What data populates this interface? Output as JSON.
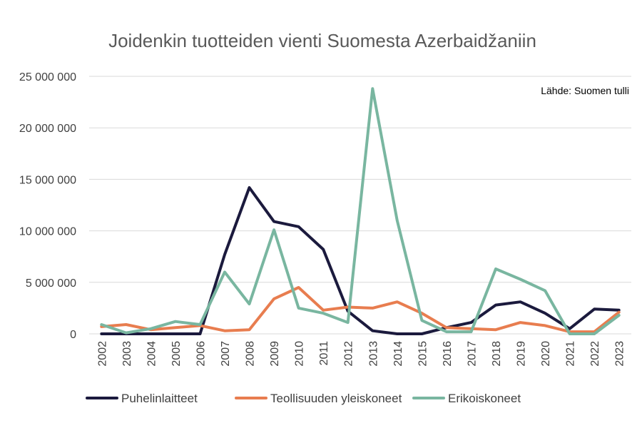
{
  "chart_data": {
    "type": "line",
    "title": "Joidenkin tuotteiden vienti Suomesta Azerbaidžaniin",
    "source_note": "Lähde: Suomen tulli",
    "xlabel": "",
    "ylabel": "",
    "ylim": [
      0,
      25000000
    ],
    "yticks": [
      0,
      5000000,
      10000000,
      15000000,
      20000000,
      25000000
    ],
    "ytick_labels": [
      "0",
      "5 000 000",
      "10 000 000",
      "15 000 000",
      "20 000 000",
      "25 000 000"
    ],
    "grid": true,
    "legend_position": "bottom",
    "categories": [
      "2002",
      "2003",
      "2004",
      "2005",
      "2006",
      "2007",
      "2008",
      "2009",
      "2010",
      "2011",
      "2012",
      "2013",
      "2014",
      "2015",
      "2016",
      "2017",
      "2018",
      "2019",
      "2020",
      "2021",
      "2022",
      "2023"
    ],
    "series": [
      {
        "name": "Puhelinlaitteet",
        "color": "#1b1a3d",
        "values": [
          0,
          0,
          0,
          0,
          0,
          7700000,
          14200000,
          10900000,
          10400000,
          8200000,
          2200000,
          300000,
          0,
          0,
          600000,
          1100000,
          2800000,
          3100000,
          2000000,
          500000,
          2400000,
          2300000
        ]
      },
      {
        "name": "Teollisuuden yleiskoneet",
        "color": "#e87d4f",
        "values": [
          700000,
          900000,
          400000,
          600000,
          800000,
          300000,
          400000,
          3400000,
          4500000,
          2300000,
          2600000,
          2500000,
          3100000,
          2000000,
          600000,
          500000,
          400000,
          1100000,
          800000,
          200000,
          200000,
          2100000
        ]
      },
      {
        "name": "Erikoiskoneet",
        "color": "#79b6a0",
        "values": [
          900000,
          100000,
          500000,
          1200000,
          900000,
          6000000,
          2900000,
          10100000,
          2500000,
          2000000,
          1100000,
          23800000,
          11000000,
          1300000,
          200000,
          200000,
          6300000,
          5300000,
          4200000,
          0,
          0,
          1800000
        ]
      }
    ]
  }
}
